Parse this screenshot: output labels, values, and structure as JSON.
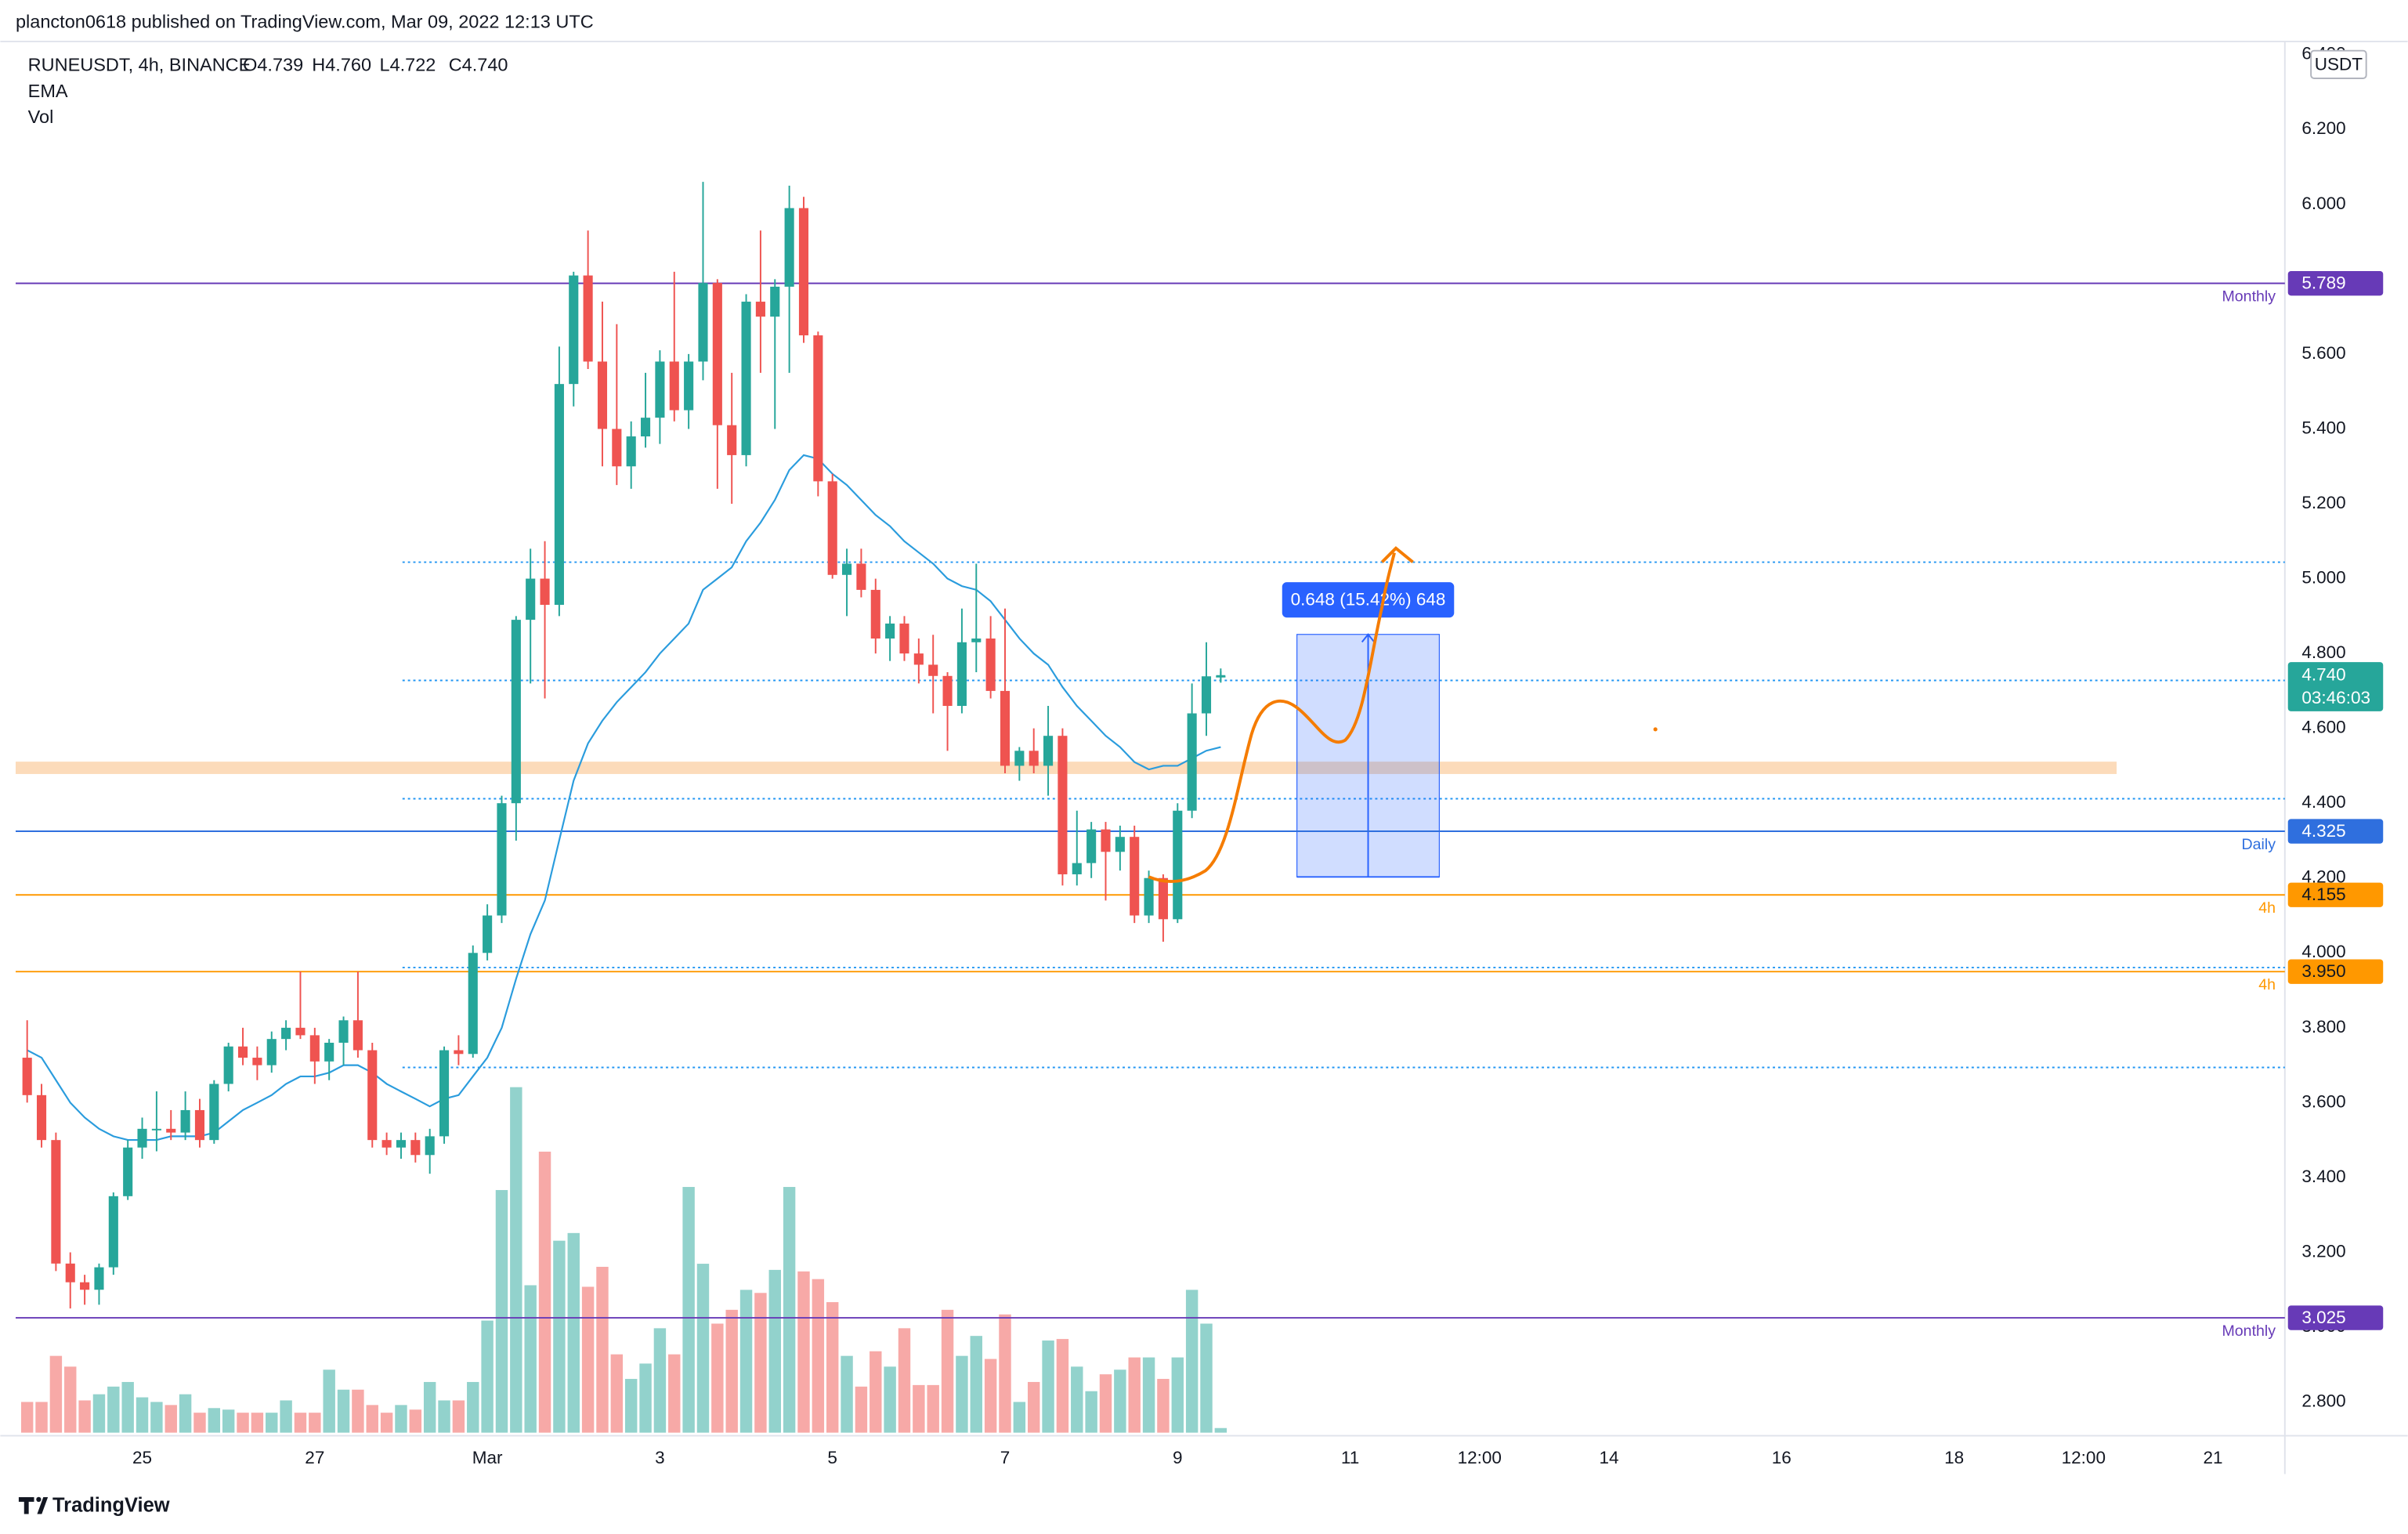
{
  "header": {
    "published": "plancton0618 published on TradingView.com, Mar 09, 2022 12:13 UTC",
    "symbol": "RUNEUSDT, 4h, BINANCE",
    "ohlc": [
      "O4.739",
      "H4.760",
      "L4.722",
      "C4.740"
    ],
    "indicators": [
      "EMA",
      "Vol"
    ],
    "footer": "TradingView"
  },
  "chart_data": {
    "type": "candlestick",
    "y_unit": "USDT",
    "up_color": "#26a69a",
    "down_color": "#ef5350",
    "xlim": [
      -0.8,
      157
    ],
    "xticks": [
      {
        "value": 8,
        "label": "25"
      },
      {
        "value": 20,
        "label": "27"
      },
      {
        "value": 32,
        "label": "Mar"
      },
      {
        "value": 44,
        "label": "3"
      },
      {
        "value": 56,
        "label": "5"
      },
      {
        "value": 68,
        "label": "7"
      },
      {
        "value": 80,
        "label": "9"
      },
      {
        "value": 92,
        "label": "11"
      },
      {
        "value": 101,
        "label": "12:00"
      },
      {
        "value": 110,
        "label": "14"
      },
      {
        "value": 122,
        "label": "16"
      },
      {
        "value": 134,
        "label": "18"
      },
      {
        "value": 143,
        "label": "12:00"
      },
      {
        "value": 152,
        "label": "21"
      }
    ],
    "ylim": [
      2.71,
      6.546
    ],
    "yticks": [
      {
        "value": 2.8,
        "label": "2.800"
      },
      {
        "value": 3.0,
        "label": "3.000"
      },
      {
        "value": 3.2,
        "label": "3.200"
      },
      {
        "value": 3.4,
        "label": "3.400"
      },
      {
        "value": 3.6,
        "label": "3.600"
      },
      {
        "value": 3.8,
        "label": "3.800"
      },
      {
        "value": 4.0,
        "label": "4.000"
      },
      {
        "value": 4.2,
        "label": "4.200"
      },
      {
        "value": 4.4,
        "label": "4.400"
      },
      {
        "value": 4.6,
        "label": "4.600"
      },
      {
        "value": 4.8,
        "label": "4.800"
      },
      {
        "value": 5.0,
        "label": "5.000"
      },
      {
        "value": 5.2,
        "label": "5.200"
      },
      {
        "value": 5.4,
        "label": "5.400"
      },
      {
        "value": 5.6,
        "label": "5.600"
      },
      {
        "value": 5.8,
        "label": "5.800"
      },
      {
        "value": 6.0,
        "label": "6.000"
      },
      {
        "value": 6.2,
        "label": "6.200"
      },
      {
        "value": 6.4,
        "label": "6.400"
      }
    ],
    "open": [
      3.72,
      3.62,
      3.5,
      3.17,
      3.12,
      3.1,
      3.16,
      3.35,
      3.48,
      3.53,
      3.53,
      3.52,
      3.58,
      3.5,
      3.65,
      3.75,
      3.72,
      3.7,
      3.77,
      3.8,
      3.78,
      3.71,
      3.76,
      3.82,
      3.74,
      3.5,
      3.48,
      3.5,
      3.46,
      3.51,
      3.74,
      3.73,
      4.0,
      4.1,
      4.4,
      4.89,
      5.0,
      4.93,
      5.52,
      5.81,
      5.58,
      5.4,
      5.3,
      5.38,
      5.43,
      5.58,
      5.45,
      5.58,
      5.79,
      5.41,
      5.33,
      5.74,
      5.7,
      5.78,
      5.99,
      5.65,
      5.26,
      5.01,
      5.04,
      4.97,
      4.84,
      4.88,
      4.8,
      4.77,
      4.74,
      4.66,
      4.83,
      4.84,
      4.7,
      4.5,
      4.54,
      4.5,
      4.58,
      4.21,
      4.24,
      4.33,
      4.27,
      4.31,
      4.1,
      4.2,
      4.09,
      4.38,
      4.64,
      4.739
    ],
    "high": [
      3.82,
      3.65,
      3.52,
      3.2,
      3.14,
      3.17,
      3.36,
      3.5,
      3.56,
      3.63,
      3.58,
      3.63,
      3.61,
      3.66,
      3.76,
      3.8,
      3.75,
      3.79,
      3.82,
      3.95,
      3.8,
      3.77,
      3.83,
      3.95,
      3.76,
      3.52,
      3.52,
      3.52,
      3.53,
      3.75,
      3.78,
      4.02,
      4.13,
      4.42,
      4.9,
      5.08,
      5.1,
      5.62,
      5.82,
      5.93,
      5.74,
      5.68,
      5.42,
      5.55,
      5.61,
      5.82,
      5.6,
      6.06,
      5.8,
      5.55,
      5.76,
      5.93,
      5.8,
      6.05,
      6.02,
      5.66,
      5.28,
      5.08,
      5.08,
      5.0,
      4.9,
      4.9,
      4.84,
      4.85,
      4.75,
      4.92,
      5.04,
      4.9,
      4.92,
      4.55,
      4.6,
      4.66,
      4.6,
      4.38,
      4.35,
      4.35,
      4.34,
      4.34,
      4.22,
      4.21,
      4.4,
      4.72,
      4.83,
      4.76
    ],
    "low": [
      3.6,
      3.48,
      3.15,
      3.05,
      3.06,
      3.06,
      3.14,
      3.34,
      3.45,
      3.47,
      3.5,
      3.5,
      3.48,
      3.49,
      3.63,
      3.7,
      3.66,
      3.68,
      3.74,
      3.77,
      3.65,
      3.66,
      3.7,
      3.72,
      3.48,
      3.46,
      3.45,
      3.44,
      3.41,
      3.49,
      3.7,
      3.72,
      3.98,
      4.08,
      4.3,
      4.72,
      4.68,
      4.9,
      5.46,
      5.56,
      5.3,
      5.25,
      5.24,
      5.35,
      5.36,
      5.42,
      5.4,
      5.53,
      5.24,
      5.2,
      5.3,
      5.55,
      5.4,
      5.55,
      5.63,
      5.22,
      5.0,
      4.9,
      4.95,
      4.8,
      4.78,
      4.78,
      4.72,
      4.64,
      4.54,
      4.64,
      4.75,
      4.68,
      4.48,
      4.46,
      4.48,
      4.42,
      4.18,
      4.18,
      4.2,
      4.14,
      4.22,
      4.08,
      4.08,
      4.03,
      4.08,
      4.36,
      4.58,
      4.722
    ],
    "close": [
      3.62,
      3.5,
      3.17,
      3.12,
      3.1,
      3.16,
      3.35,
      3.48,
      3.53,
      3.53,
      3.52,
      3.58,
      3.5,
      3.65,
      3.75,
      3.72,
      3.7,
      3.77,
      3.8,
      3.78,
      3.71,
      3.76,
      3.82,
      3.74,
      3.5,
      3.48,
      3.5,
      3.46,
      3.51,
      3.74,
      3.73,
      4.0,
      4.1,
      4.4,
      4.89,
      5.0,
      4.93,
      5.52,
      5.81,
      5.58,
      5.4,
      5.3,
      5.38,
      5.43,
      5.58,
      5.45,
      5.58,
      5.79,
      5.41,
      5.33,
      5.74,
      5.7,
      5.78,
      5.99,
      5.65,
      5.26,
      5.01,
      5.04,
      4.97,
      4.84,
      4.88,
      4.8,
      4.77,
      4.74,
      4.66,
      4.83,
      4.84,
      4.7,
      4.5,
      4.54,
      4.5,
      4.58,
      4.21,
      4.24,
      4.33,
      4.27,
      4.31,
      4.1,
      4.2,
      4.09,
      4.38,
      4.64,
      4.739,
      4.74
    ],
    "ema": {
      "color": "#2a9cdd",
      "values": [
        3.74,
        3.72,
        3.66,
        3.6,
        3.56,
        3.53,
        3.51,
        3.5,
        3.5,
        3.5,
        3.51,
        3.51,
        3.51,
        3.52,
        3.55,
        3.58,
        3.6,
        3.62,
        3.65,
        3.67,
        3.67,
        3.68,
        3.7,
        3.7,
        3.68,
        3.65,
        3.63,
        3.61,
        3.59,
        3.61,
        3.62,
        3.67,
        3.72,
        3.8,
        3.93,
        4.05,
        4.14,
        4.3,
        4.46,
        4.56,
        4.62,
        4.67,
        4.71,
        4.75,
        4.8,
        4.84,
        4.88,
        4.97,
        5.0,
        5.03,
        5.1,
        5.15,
        5.21,
        5.29,
        5.33,
        5.32,
        5.28,
        5.25,
        5.21,
        5.17,
        5.14,
        5.1,
        5.07,
        5.04,
        5.0,
        4.98,
        4.97,
        4.94,
        4.89,
        4.84,
        4.8,
        4.77,
        4.71,
        4.66,
        4.62,
        4.58,
        4.55,
        4.51,
        4.49,
        4.5,
        4.5,
        4.52,
        4.54,
        4.55
      ]
    },
    "volume": {
      "values": [
        20,
        20,
        50,
        43,
        21,
        25,
        30,
        33,
        23,
        20,
        18,
        25,
        13,
        16,
        15,
        13,
        13,
        13,
        21,
        13,
        13,
        41,
        28,
        28,
        18,
        13,
        18,
        15,
        33,
        21,
        21,
        33,
        73,
        158,
        225,
        96,
        183,
        125,
        130,
        95,
        108,
        51,
        35,
        45,
        68,
        51,
        160,
        110,
        71,
        80,
        93,
        91,
        106,
        160,
        105,
        100,
        85,
        50,
        30,
        53,
        43,
        68,
        31,
        31,
        80,
        50,
        63,
        48,
        77,
        20,
        33,
        60,
        61,
        43,
        27,
        38,
        41,
        49,
        49,
        35,
        49,
        93,
        71,
        3
      ]
    },
    "levels": [
      {
        "price": 5.789,
        "label": "Monthly",
        "color": "#673ab7"
      },
      {
        "price": 4.325,
        "label": "Daily",
        "color": "#2f6fde"
      },
      {
        "price": 4.155,
        "label": "4h",
        "color": "#ff9800"
      },
      {
        "price": {
          "value": 3.95,
          "label": "3.950"
        },
        "label": "4h",
        "color": "#ff9800"
      },
      {
        "price": 3.025,
        "label": "Monthly",
        "color": "#673ab7"
      }
    ],
    "dotted_levels": [
      5.044,
      4.728,
      4.412,
      3.961,
      3.694
    ],
    "dotted_from": 26.1,
    "zone": {
      "low": 4.478,
      "high": 4.511,
      "to": 145.3,
      "color": "#fbd5ae"
    },
    "measure": {
      "top": 4.851,
      "bottom": 4.203,
      "from": 88.3,
      "to": 98.2,
      "label": "0.648 (15.42%) 648"
    },
    "last": {
      "price": {
        "value": 4.74,
        "label": "4.740"
      },
      "countdown": "03:46:03"
    }
  }
}
